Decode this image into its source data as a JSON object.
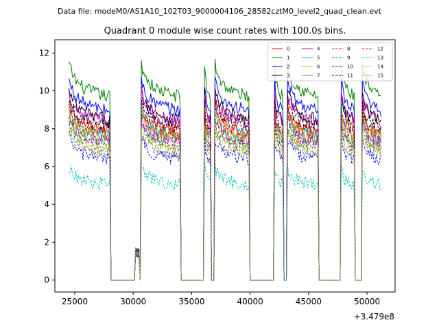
{
  "chart_data": {
    "type": "line",
    "suptitle": "Data file: modeM0/AS1A10_102T03_9000004106_28582cztM0_level2_quad_clean.evt",
    "title": "Quadrant 0 module wise count rates with 100.0s bins.",
    "xlabel": "",
    "ylabel": "",
    "x_offset_label": "+3.479e8",
    "xlim": [
      23300,
      52400
    ],
    "ylim": [
      -0.63,
      12.7
    ],
    "xticks": [
      25000,
      30000,
      35000,
      40000,
      45000,
      50000
    ],
    "xtick_labels": [
      "25000",
      "30000",
      "35000",
      "40000",
      "45000",
      "50000"
    ],
    "yticks": [
      0,
      2,
      4,
      6,
      8,
      10,
      12
    ],
    "ytick_labels": [
      "0",
      "2",
      "4",
      "6",
      "8",
      "10",
      "12"
    ],
    "legend_position": "top-right",
    "bin_width_s": 100,
    "segments": [
      {
        "t0": 24500,
        "t1": 28000,
        "c": 1.0
      },
      {
        "t0": 30200,
        "t1": 30500,
        "c": 0.15
      },
      {
        "t0": 30700,
        "t1": 34000,
        "c": 1.0
      },
      {
        "t0": 36100,
        "t1": 36600,
        "c": 1.0
      },
      {
        "t0": 37000,
        "t1": 39900,
        "c": 1.0
      },
      {
        "t0": 42100,
        "t1": 42800,
        "c": 1.0
      },
      {
        "t0": 43200,
        "t1": 45800,
        "c": 1.0
      },
      {
        "t0": 47800,
        "t1": 48900,
        "c": 1.0
      },
      {
        "t0": 49600,
        "t1": 51200,
        "c": 1.0
      }
    ],
    "series": [
      {
        "name": "0",
        "color": "#ff0000",
        "dash": "solid",
        "level": 8.3
      },
      {
        "name": "1",
        "color": "#008000",
        "dash": "solid",
        "level": 10.2
      },
      {
        "name": "2",
        "color": "#0000ff",
        "dash": "solid",
        "level": 9.4
      },
      {
        "name": "3",
        "color": "#000000",
        "dash": "solid",
        "level": 8.9
      },
      {
        "name": "4",
        "color": "#bf00bf",
        "dash": "solid",
        "level": 8.8
      },
      {
        "name": "5",
        "color": "#00bfbf",
        "dash": "solid",
        "level": 8.0
      },
      {
        "name": "6",
        "color": "#bfbf00",
        "dash": "solid",
        "level": 7.9
      },
      {
        "name": "7",
        "color": "#808080",
        "dash": "solid",
        "level": 7.7
      },
      {
        "name": "8",
        "color": "#ff0000",
        "dash": "dashed",
        "level": 8.1
      },
      {
        "name": "9",
        "color": "#008000",
        "dash": "dashed",
        "level": 7.4
      },
      {
        "name": "10",
        "color": "#0000ff",
        "dash": "dashed",
        "level": 6.7
      },
      {
        "name": "11",
        "color": "#000000",
        "dash": "dashed",
        "level": 8.5
      },
      {
        "name": "12",
        "color": "#bf00bf",
        "dash": "dashed",
        "level": 7.6
      },
      {
        "name": "13",
        "color": "#00bfbf",
        "dash": "dashed",
        "level": 5.3
      },
      {
        "name": "14",
        "color": "#bfbf00",
        "dash": "dashed",
        "level": 7.2
      },
      {
        "name": "15",
        "color": "#808080",
        "dash": "dashed",
        "level": 7.0
      }
    ]
  }
}
